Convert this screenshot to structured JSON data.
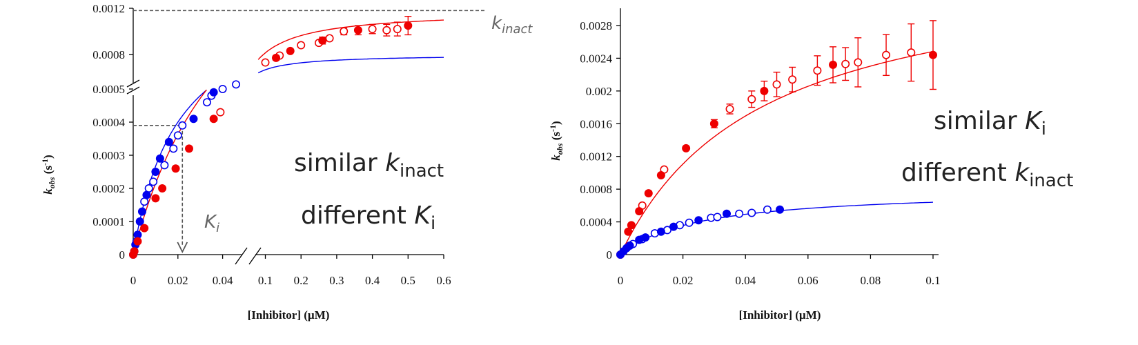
{
  "chart_data": [
    {
      "type": "scatter",
      "title": "",
      "xlabel": "[Inhibitor] (µM)",
      "ylabel": "kobs (s-1)",
      "x_segments": [
        {
          "range": [
            0,
            0.05
          ],
          "ticks": [
            0,
            0.02,
            0.04
          ],
          "tick_labels": [
            "0",
            "0.02",
            "0.04"
          ]
        },
        {
          "range": [
            0.07,
            0.6
          ],
          "ticks": [
            0.1,
            0.2,
            0.3,
            0.4,
            0.5,
            0.6
          ],
          "tick_labels": [
            "0.1",
            "0.2",
            "0.3",
            "0.4",
            "0.5",
            "0.6"
          ]
        }
      ],
      "y_segments": [
        {
          "range": [
            0,
            0.0005
          ],
          "ticks": [
            0,
            0.0001,
            0.0002,
            0.0003,
            0.0004,
            0.0005
          ],
          "tick_labels": [
            "0",
            "0.0001",
            "0.0002",
            "0.0003",
            "0.0004",
            "0.0005"
          ]
        },
        {
          "range": [
            0.0005,
            0.0012
          ],
          "ticks": [
            0.0008,
            0.0012
          ],
          "tick_labels": [
            "0.0008",
            "0.0012"
          ]
        }
      ],
      "series": [
        {
          "color": "#0000ee",
          "fit": {
            "model": "kinact*x/(Ki+x)",
            "kinact": 0.0008,
            "Ki": 0.02
          },
          "filled": [
            [
              0,
              0
            ],
            [
              0.0005,
              1e-05
            ],
            [
              0.001,
              3e-05
            ],
            [
              0.002,
              6e-05
            ],
            [
              0.003,
              0.0001
            ],
            [
              0.004,
              0.00013
            ],
            [
              0.006,
              0.00018
            ],
            [
              0.01,
              0.00025
            ],
            [
              0.012,
              0.00029
            ],
            [
              0.016,
              0.00034
            ],
            [
              0.027,
              0.00041
            ],
            [
              0.036,
              0.00049
            ]
          ],
          "open": [
            [
              0.0015,
              4e-05
            ],
            [
              0.005,
              0.00016
            ],
            [
              0.007,
              0.0002
            ],
            [
              0.009,
              0.00022
            ],
            [
              0.014,
              0.00027
            ],
            [
              0.018,
              0.00032
            ],
            [
              0.02,
              0.00036
            ],
            [
              0.022,
              0.00039
            ],
            [
              0.033,
              0.00046
            ],
            [
              0.035,
              0.00048
            ],
            [
              0.04,
              0.0005
            ],
            [
              0.046,
              0.00054
            ]
          ]
        },
        {
          "color": "#ee0000",
          "fit": {
            "model": "kinact*x/(Ki+x)",
            "kinact": 0.00118,
            "Ki": 0.045
          },
          "filled": [
            [
              0,
              0
            ],
            [
              0.0005,
              1e-05
            ],
            [
              0.002,
              4e-05
            ],
            [
              0.005,
              8e-05
            ],
            [
              0.01,
              0.00017
            ],
            [
              0.013,
              0.0002
            ],
            [
              0.019,
              0.00026
            ],
            [
              0.025,
              0.00032
            ],
            [
              0.036,
              0.00041
            ],
            [
              0.13,
              0.00077
            ],
            [
              0.17,
              0.00083
            ],
            [
              0.26,
              0.00092
            ],
            [
              0.36,
              0.00101
            ],
            [
              0.5,
              0.00105
            ]
          ],
          "open": [
            [
              0.039,
              0.00043
            ],
            [
              0.1,
              0.00073
            ],
            [
              0.14,
              0.00079
            ],
            [
              0.2,
              0.00088
            ],
            [
              0.25,
              0.0009
            ],
            [
              0.28,
              0.00094
            ],
            [
              0.32,
              0.001
            ],
            [
              0.4,
              0.00102
            ],
            [
              0.44,
              0.00101
            ],
            [
              0.47,
              0.00102
            ]
          ],
          "error_bars_x": [
            0.13,
            0.26,
            0.32,
            0.36,
            0.4,
            0.44,
            0.47,
            0.5
          ],
          "error_bars_y": [
            2e-05,
            3e-05,
            3e-05,
            4e-05,
            4e-05,
            5e-05,
            6e-05,
            8e-05
          ]
        }
      ],
      "reference_lines": {
        "kinact_y": 0.00118,
        "Ki_x": 0.022,
        "Ki_y": 0.00039
      },
      "text_labels": {
        "kinact": {
          "main": "k",
          "sub": "inact"
        },
        "Ki": {
          "main": "K",
          "sub": "i"
        },
        "line1": {
          "pre": "similar ",
          "main": "k",
          "sub": "inact"
        },
        "line2": {
          "pre": "different ",
          "main": "K",
          "sub": "i"
        }
      }
    },
    {
      "type": "scatter",
      "title": "",
      "xlabel": "[Inhibitor] (µM)",
      "ylabel": "kobs (s-1)",
      "xlim": [
        0,
        0.1
      ],
      "ylim": [
        0,
        0.0028
      ],
      "x_ticks": [
        0,
        0.02,
        0.04,
        0.06,
        0.08,
        0.1
      ],
      "x_tick_labels": [
        "0",
        "0.02",
        "0.04",
        "0.06",
        "0.08",
        "0.1"
      ],
      "y_ticks": [
        0,
        0.0004,
        0.0008,
        0.0012,
        0.0016,
        0.002,
        0.0024,
        0.0028
      ],
      "y_tick_labels": [
        "0",
        "0.0004",
        "0.0008",
        "0.0012",
        "0.0016",
        "0.002",
        "0.0024",
        "0.0028"
      ],
      "series": [
        {
          "color": "#ee0000",
          "fit": {
            "model": "kinact*x/(Ki+x)",
            "kinact": 0.0036,
            "Ki": 0.045
          },
          "filled": [
            [
              0,
              0
            ],
            [
              0.0025,
              0.00028
            ],
            [
              0.0035,
              0.00036
            ],
            [
              0.006,
              0.00053
            ],
            [
              0.009,
              0.00075
            ],
            [
              0.013,
              0.00097
            ],
            [
              0.021,
              0.0013
            ],
            [
              0.03,
              0.0016
            ],
            [
              0.046,
              0.002
            ],
            [
              0.068,
              0.00232
            ],
            [
              0.1,
              0.00244
            ]
          ],
          "open": [
            [
              0.007,
              0.0006
            ],
            [
              0.014,
              0.00104
            ],
            [
              0.035,
              0.00178
            ],
            [
              0.042,
              0.0019
            ],
            [
              0.05,
              0.00208
            ],
            [
              0.055,
              0.00214
            ],
            [
              0.063,
              0.00225
            ],
            [
              0.072,
              0.00233
            ],
            [
              0.076,
              0.00235
            ],
            [
              0.085,
              0.00244
            ],
            [
              0.093,
              0.00247
            ]
          ],
          "error_bars_x": [
            0.03,
            0.035,
            0.042,
            0.046,
            0.05,
            0.055,
            0.063,
            0.068,
            0.072,
            0.076,
            0.085,
            0.093,
            0.1
          ],
          "error_bars_y": [
            5e-05,
            6e-05,
            0.0001,
            0.00012,
            0.00015,
            0.00015,
            0.00018,
            0.00022,
            0.0002,
            0.0003,
            0.00025,
            0.00035,
            0.00042
          ]
        },
        {
          "color": "#0000ee",
          "fit": {
            "model": "kinact*x/(Ki+x)",
            "kinact": 0.0008,
            "Ki": 0.025
          },
          "filled": [
            [
              0,
              0
            ],
            [
              0.001,
              4e-05
            ],
            [
              0.002,
              8e-05
            ],
            [
              0.003,
              0.00011
            ],
            [
              0.006,
              0.00018
            ],
            [
              0.008,
              0.00021
            ],
            [
              0.013,
              0.00028
            ],
            [
              0.017,
              0.00034
            ],
            [
              0.025,
              0.00042
            ],
            [
              0.034,
              0.0005
            ],
            [
              0.051,
              0.00055
            ]
          ],
          "open": [
            [
              0.004,
              0.00013
            ],
            [
              0.007,
              0.00019
            ],
            [
              0.011,
              0.00026
            ],
            [
              0.015,
              0.0003
            ],
            [
              0.019,
              0.00036
            ],
            [
              0.022,
              0.00039
            ],
            [
              0.029,
              0.00045
            ],
            [
              0.031,
              0.00046
            ],
            [
              0.038,
              0.0005
            ],
            [
              0.042,
              0.00051
            ],
            [
              0.047,
              0.00055
            ]
          ]
        }
      ],
      "text_labels": {
        "line1": {
          "pre": "similar ",
          "main": "K",
          "sub": "i"
        },
        "line2": {
          "pre": "different ",
          "main": "k",
          "sub": "inact"
        }
      }
    }
  ]
}
